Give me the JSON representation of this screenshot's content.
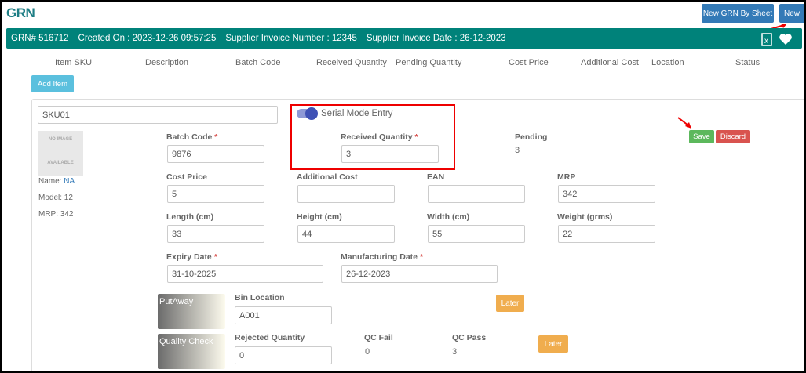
{
  "page": {
    "title": "GRN",
    "new_by_sheet": "New GRN By Sheet",
    "new": "New"
  },
  "bar": {
    "grn": "GRN# 516712",
    "created": "Created On : 2023-12-26 09:57:25",
    "invoice_number": "Supplier Invoice Number : 12345",
    "invoice_date": "Supplier Invoice Date : 26-12-2023",
    "icons": [
      "excel-icon",
      "heart-icon"
    ]
  },
  "columns": [
    "Item SKU",
    "Description",
    "Batch Code",
    "Received Quantity",
    "Pending Quantity",
    "Cost Price",
    "Additional Cost",
    "Location",
    "Status"
  ],
  "add_item": "Add Item",
  "item": {
    "sku": "SKU01",
    "serial_mode": "Serial Mode Entry",
    "serial_mode_on": true,
    "no_image": [
      "NO IMAGE",
      "AVAILABLE"
    ],
    "name_label": "Name:",
    "name": "NA",
    "model": "Model: 12",
    "mrp": "MRP: 342",
    "batch_code_label": "Batch Code",
    "batch_code": "9876",
    "received_label": "Received Quantity",
    "received": "3",
    "pending_label": "Pending",
    "pending": "3",
    "save": "Save",
    "discard": "Discard",
    "cost_price_label": "Cost Price",
    "cost_price": "5",
    "additional_cost_label": "Additional Cost",
    "additional_cost": "",
    "ean_label": "EAN",
    "ean": "",
    "mrp_label": "MRP",
    "mrp_value": "342",
    "length_label": "Length (cm)",
    "length": "33",
    "height_label": "Height (cm)",
    "height": "44",
    "width_label": "Width (cm)",
    "width": "55",
    "weight_label": "Weight (grms)",
    "weight": "22",
    "expiry_label": "Expiry Date",
    "expiry": "31-10-2025",
    "mfg_label": "Manufacturing Date",
    "mfg": "26-12-2023",
    "required_mark": "*"
  },
  "putaway": {
    "title": "PutAway",
    "bin_label": "Bin Location",
    "bin": "A001",
    "later": "Later"
  },
  "qc": {
    "title": "Quality Check",
    "rejected_label": "Rejected Quantity",
    "rejected": "0",
    "fail_label": "QC Fail",
    "fail": "0",
    "pass_label": "QC Pass",
    "pass": "3",
    "later": "Later"
  },
  "colors": {
    "teal": "#00827a",
    "highlight": "#e00000",
    "save": "#5cb85c",
    "discard": "#d9534f",
    "later": "#f0ad4e"
  }
}
